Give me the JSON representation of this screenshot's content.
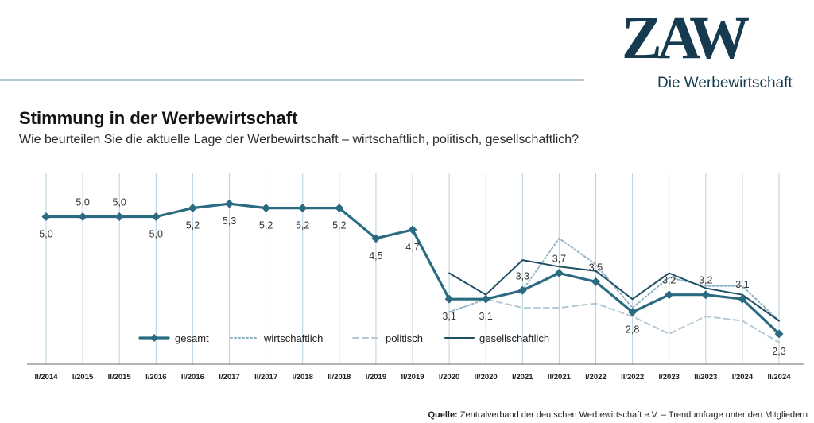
{
  "header": {
    "logo_text": "ZAW",
    "logo_subtitle": "Die Werbewirtschaft"
  },
  "title": "Stimmung in der Werbewirtschaft",
  "subtitle": "Wie beurteilen Sie die aktuelle Lage der Werbewirtschaft – wirtschaftlich, politisch, gesellschaftlich?",
  "source": {
    "label": "Quelle:",
    "text": "Zentralverband der deutschen Werbewirtschaft e.V. – Trendumfrage unter den Mitgliedern"
  },
  "colors": {
    "gesamt": "#2a6b82",
    "wirtschaftlich": "#8fb2c4",
    "politisch": "#b3c8d4",
    "gesellschaftlich": "#1e4f63",
    "gridline": "#b8d2e0"
  },
  "chart_data": {
    "type": "line",
    "categories": [
      "II/2014",
      "I/2015",
      "II/2015",
      "I/2016",
      "II/2016",
      "I/2017",
      "II/2017",
      "I/2018",
      "II/2018",
      "I/2019",
      "II/2019",
      "I/2020",
      "II/2020",
      "I/2021",
      "II/2021",
      "I/2022",
      "II/2022",
      "I/2023",
      "II/2023",
      "I/2024",
      "II/2024"
    ],
    "ylim": [
      1.6,
      6.0
    ],
    "grid": true,
    "legend_position": "bottom-center",
    "series": [
      {
        "name": "gesamt",
        "style": "solid-diamond",
        "values": [
          5.0,
          5.0,
          5.0,
          5.0,
          5.2,
          5.3,
          5.2,
          5.2,
          5.2,
          4.5,
          4.7,
          3.1,
          3.1,
          3.3,
          3.7,
          3.5,
          2.8,
          3.2,
          3.2,
          3.1,
          2.3
        ],
        "labels": [
          "5,0",
          "5,0",
          "5,0",
          "5,0",
          "5,2",
          "5,3",
          "5,2",
          "5,2",
          "5,2",
          "4,5",
          "4,7",
          "3,1",
          "3,1",
          "3,3",
          "3,7",
          "3,5",
          "2,8",
          "3,2",
          "3,2",
          "3,1",
          "2,3"
        ]
      },
      {
        "name": "wirtschaftlich",
        "style": "dotted",
        "values": [
          null,
          null,
          null,
          null,
          null,
          null,
          null,
          null,
          null,
          null,
          null,
          2.8,
          3.1,
          3.3,
          4.5,
          3.9,
          2.9,
          3.6,
          3.4,
          3.4,
          2.6
        ]
      },
      {
        "name": "politisch",
        "style": "dashed",
        "values": [
          null,
          null,
          null,
          null,
          null,
          null,
          null,
          null,
          null,
          null,
          null,
          3.1,
          3.1,
          2.9,
          2.9,
          3.0,
          2.7,
          2.3,
          2.7,
          2.6,
          2.1
        ]
      },
      {
        "name": "gesellschaftlich",
        "style": "solid",
        "values": [
          null,
          null,
          null,
          null,
          null,
          null,
          null,
          null,
          null,
          null,
          null,
          3.7,
          3.2,
          4.0,
          3.85,
          3.75,
          3.1,
          3.7,
          3.35,
          3.2,
          2.6
        ]
      }
    ]
  }
}
